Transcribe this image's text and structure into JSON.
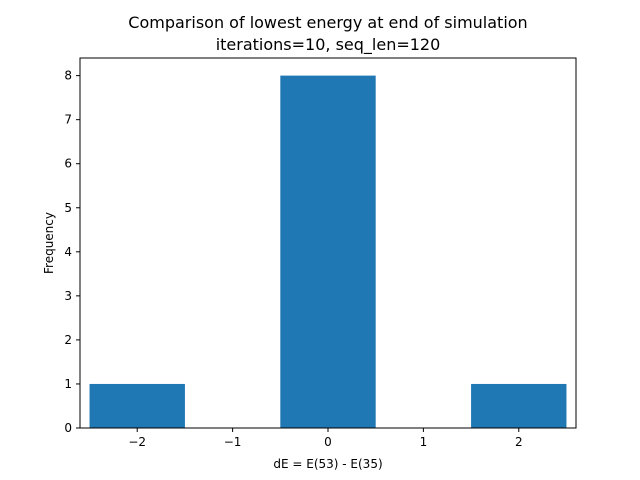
{
  "chart_data": {
    "type": "bar",
    "title": "Comparison of lowest energy at end of simulation",
    "subtitle": "iterations=10, seq_len=120",
    "xlabel": "dE = E(53) - E(35)",
    "ylabel": "Frequency",
    "x": [
      -2,
      0,
      2
    ],
    "values": [
      1,
      8,
      1
    ],
    "bar_width": 1,
    "xlim": [
      -2.6,
      2.6
    ],
    "ylim": [
      0,
      8.4
    ],
    "xticks": [
      -2,
      -1,
      0,
      1,
      2
    ],
    "xtick_labels": [
      "−2",
      "−1",
      "0",
      "1",
      "2"
    ],
    "yticks": [
      0,
      1,
      2,
      3,
      4,
      5,
      6,
      7,
      8
    ],
    "ytick_labels": [
      "0",
      "1",
      "2",
      "3",
      "4",
      "5",
      "6",
      "7",
      "8"
    ],
    "grid": false,
    "bar_color": "#1f77b4"
  }
}
